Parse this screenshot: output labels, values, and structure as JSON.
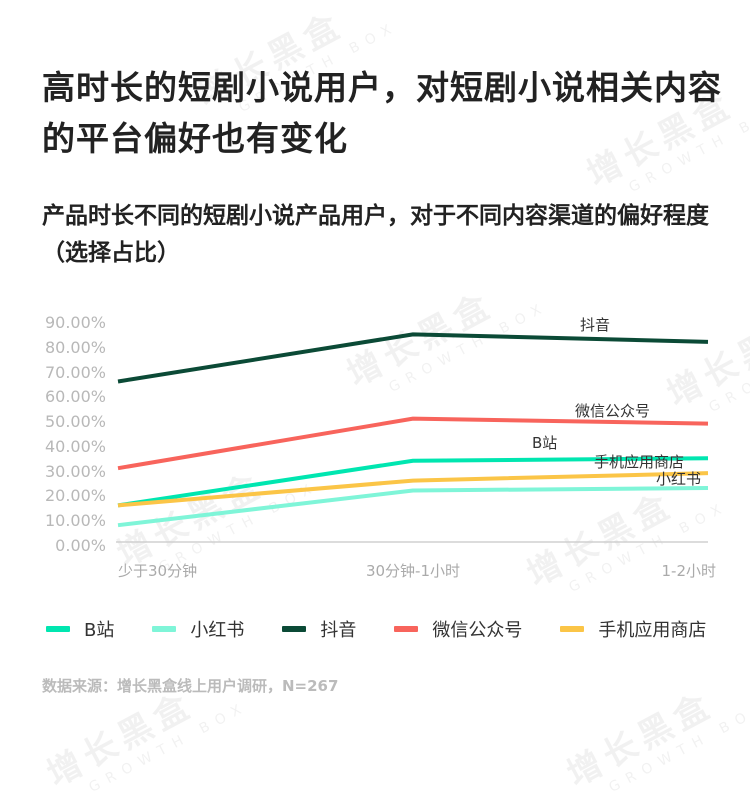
{
  "title": "高时长的短剧小说用户，对短剧小说相关内容的平台偏好也有变化",
  "subtitle": "产品时长不同的短剧小说产品用户，对于不同内容渠道的偏好程度（选择占比）",
  "watermark": {
    "cn": "增长黑盒",
    "en": "GROWTH BOX"
  },
  "source": "数据来源：增长黑盒线上用户调研，N=267",
  "chart_data": {
    "type": "line",
    "title": "产品时长不同的短剧小说产品用户，对于不同内容渠道的偏好程度（选择占比）",
    "xlabel": "",
    "ylabel": "",
    "categories": [
      "少于30分钟",
      "30分钟-1小时",
      "1-2小时"
    ],
    "ylim": [
      0,
      90
    ],
    "yticks": [
      "0.00%",
      "10.00%",
      "20.00%",
      "30.00%",
      "40.00%",
      "50.00%",
      "60.00%",
      "70.00%",
      "80.00%",
      "90.00%"
    ],
    "grid": false,
    "legend_position": "bottom",
    "series": [
      {
        "name": "B站",
        "color": "#00e6b0",
        "values": [
          16,
          34,
          35
        ]
      },
      {
        "name": "小红书",
        "color": "#7ff5d8",
        "values": [
          8,
          22,
          23
        ]
      },
      {
        "name": "抖音",
        "color": "#0b4a36",
        "values": [
          66,
          85,
          82
        ]
      },
      {
        "name": "微信公众号",
        "color": "#f8645c",
        "values": [
          31,
          51,
          49
        ]
      },
      {
        "name": "手机应用商店",
        "color": "#fbc547",
        "values": [
          16,
          26,
          29
        ]
      }
    ]
  }
}
